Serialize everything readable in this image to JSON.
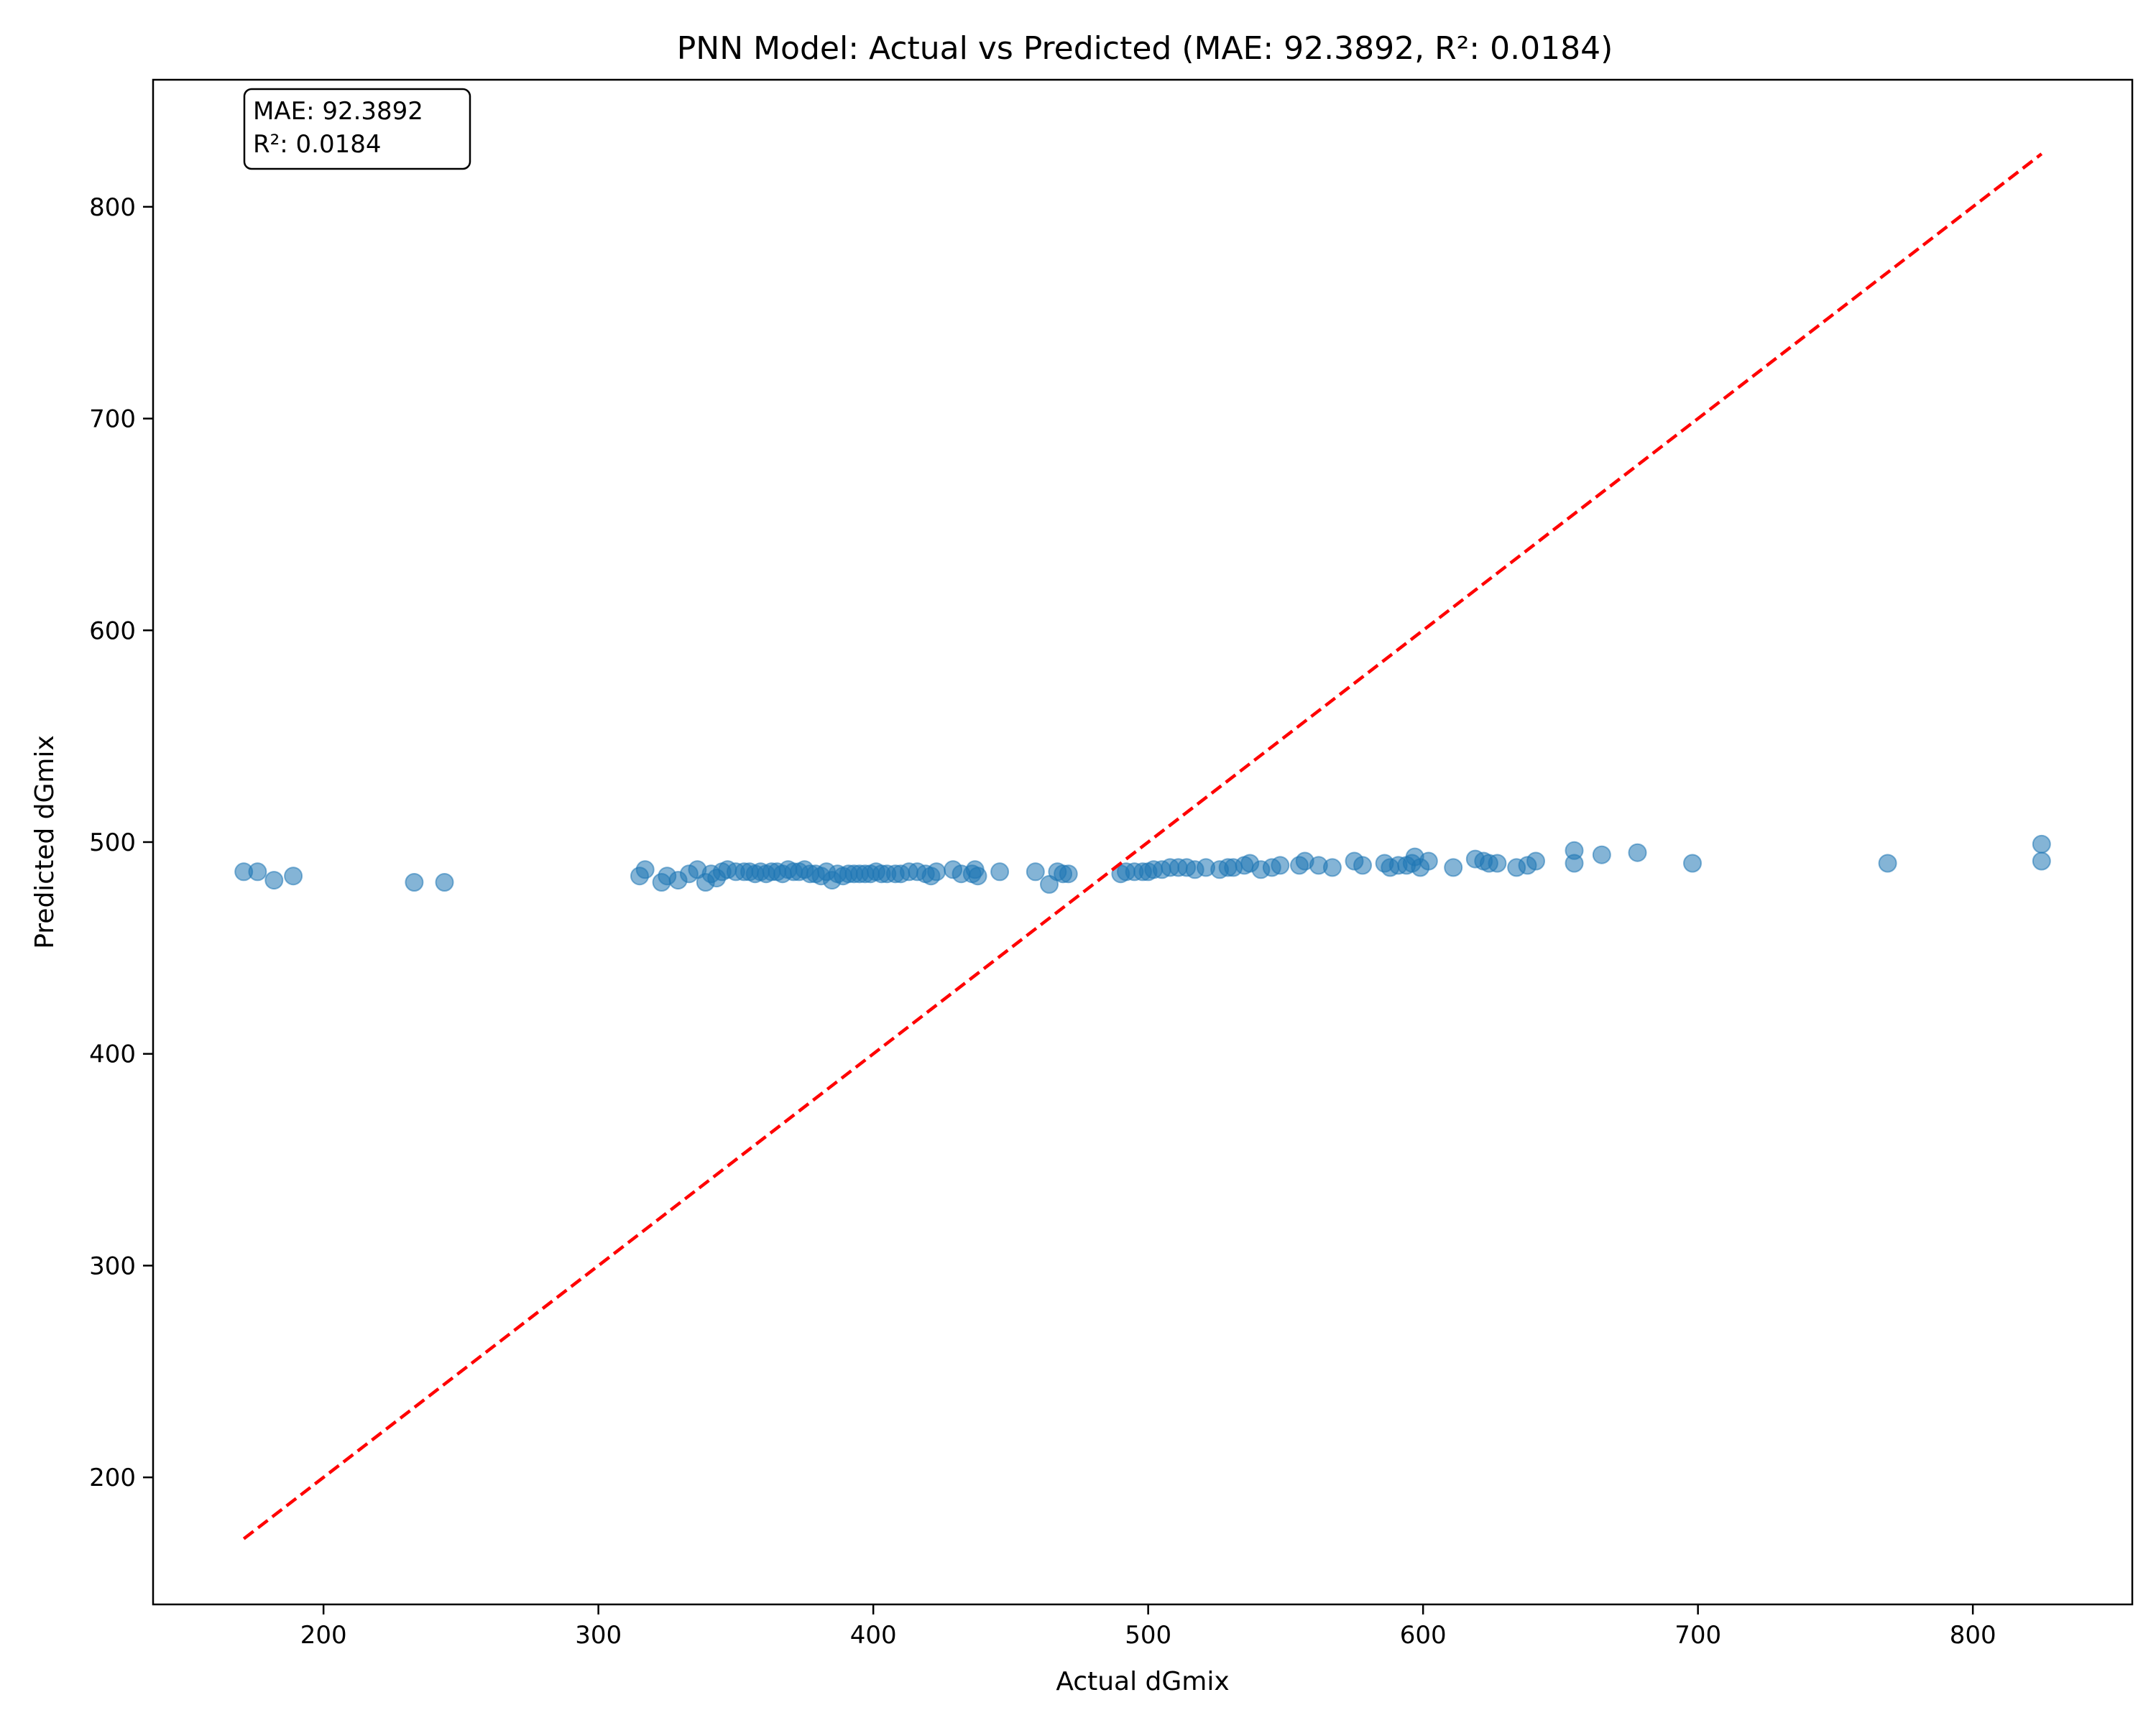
{
  "chart_data": {
    "type": "scatter",
    "title": "PNN Model: Actual vs Predicted (MAE: 92.3892, R²: 0.0184)",
    "xlabel": "Actual dGmix",
    "ylabel": "Predicted dGmix",
    "xlim": [
      138,
      858
    ],
    "ylim": [
      140,
      860
    ],
    "xticks": [
      200,
      300,
      400,
      500,
      600,
      700,
      800
    ],
    "yticks": [
      200,
      300,
      400,
      500,
      600,
      700,
      800
    ],
    "xtick_labels": [
      "200",
      "300",
      "400",
      "500",
      "600",
      "700",
      "800"
    ],
    "ytick_labels": [
      "200",
      "300",
      "400",
      "500",
      "600",
      "700",
      "800"
    ],
    "grid": false,
    "annotation": {
      "lines": [
        "MAE: 92.3892",
        "R²: 0.0184"
      ],
      "placement": "top-left"
    },
    "reference_line": {
      "from": [
        171,
        171
      ],
      "to": [
        825,
        825
      ],
      "color": "#ff0000",
      "style": "dashed"
    },
    "series": [
      {
        "color": "#1f77b4",
        "opacity": 0.55,
        "points": [
          [
            171,
            486
          ],
          [
            176,
            486
          ],
          [
            182,
            482
          ],
          [
            189,
            484
          ],
          [
            233,
            481
          ],
          [
            244,
            481
          ],
          [
            315,
            484
          ],
          [
            317,
            487
          ],
          [
            323,
            481
          ],
          [
            325,
            484
          ],
          [
            329,
            482
          ],
          [
            333,
            485
          ],
          [
            336,
            487
          ],
          [
            339,
            481
          ],
          [
            341,
            485
          ],
          [
            343,
            483
          ],
          [
            345,
            486
          ],
          [
            347,
            487
          ],
          [
            350,
            486
          ],
          [
            353,
            486
          ],
          [
            355,
            486
          ],
          [
            357,
            485
          ],
          [
            359,
            486
          ],
          [
            361,
            485
          ],
          [
            363,
            486
          ],
          [
            365,
            486
          ],
          [
            367,
            485
          ],
          [
            369,
            487
          ],
          [
            371,
            486
          ],
          [
            373,
            486
          ],
          [
            375,
            487
          ],
          [
            377,
            485
          ],
          [
            379,
            485
          ],
          [
            381,
            484
          ],
          [
            383,
            486
          ],
          [
            385,
            482
          ],
          [
            387,
            485
          ],
          [
            389,
            484
          ],
          [
            391,
            485
          ],
          [
            393,
            485
          ],
          [
            395,
            485
          ],
          [
            397,
            485
          ],
          [
            399,
            485
          ],
          [
            401,
            486
          ],
          [
            403,
            485
          ],
          [
            405,
            485
          ],
          [
            408,
            485
          ],
          [
            410,
            485
          ],
          [
            413,
            486
          ],
          [
            416,
            486
          ],
          [
            419,
            485
          ],
          [
            421,
            484
          ],
          [
            423,
            486
          ],
          [
            429,
            487
          ],
          [
            432,
            485
          ],
          [
            436,
            485
          ],
          [
            437,
            487
          ],
          [
            438,
            484
          ],
          [
            446,
            486
          ],
          [
            459,
            486
          ],
          [
            464,
            480
          ],
          [
            467,
            486
          ],
          [
            469,
            485
          ],
          [
            471,
            485
          ],
          [
            490,
            485
          ],
          [
            492,
            486
          ],
          [
            495,
            486
          ],
          [
            498,
            486
          ],
          [
            500,
            486
          ],
          [
            502,
            487
          ],
          [
            505,
            487
          ],
          [
            508,
            488
          ],
          [
            511,
            488
          ],
          [
            514,
            488
          ],
          [
            517,
            487
          ],
          [
            521,
            488
          ],
          [
            526,
            487
          ],
          [
            529,
            488
          ],
          [
            531,
            488
          ],
          [
            535,
            489
          ],
          [
            537,
            490
          ],
          [
            541,
            487
          ],
          [
            545,
            488
          ],
          [
            548,
            489
          ],
          [
            555,
            489
          ],
          [
            557,
            491
          ],
          [
            562,
            489
          ],
          [
            567,
            488
          ],
          [
            575,
            491
          ],
          [
            578,
            489
          ],
          [
            586,
            490
          ],
          [
            588,
            488
          ],
          [
            591,
            489
          ],
          [
            594,
            489
          ],
          [
            596,
            490
          ],
          [
            597,
            493
          ],
          [
            599,
            488
          ],
          [
            602,
            491
          ],
          [
            611,
            488
          ],
          [
            619,
            492
          ],
          [
            622,
            491
          ],
          [
            624,
            490
          ],
          [
            627,
            490
          ],
          [
            634,
            488
          ],
          [
            638,
            489
          ],
          [
            641,
            491
          ],
          [
            655,
            496
          ],
          [
            655,
            490
          ],
          [
            665,
            494
          ],
          [
            678,
            495
          ],
          [
            698,
            490
          ],
          [
            769,
            490
          ],
          [
            825,
            499
          ],
          [
            825,
            491
          ]
        ]
      }
    ]
  }
}
